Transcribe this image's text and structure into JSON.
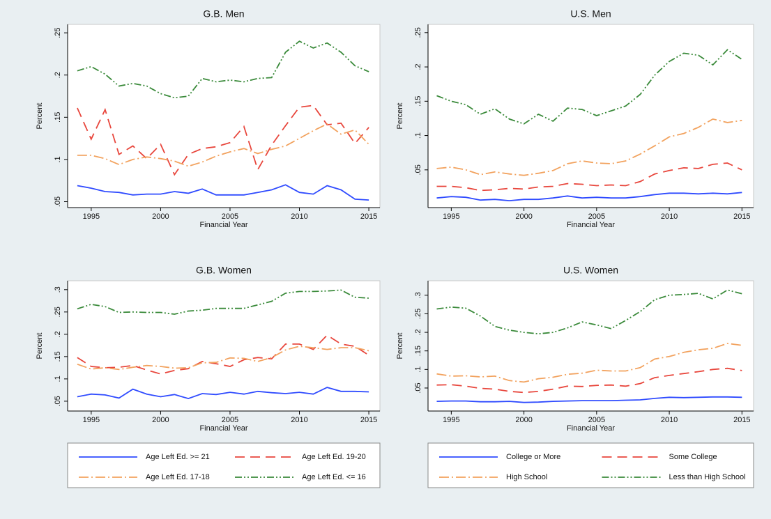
{
  "chart_data": [
    {
      "type": "line",
      "title": "G.B. Men",
      "x_label": "Financial Year",
      "y_label": "Percent",
      "x": [
        1994,
        1995,
        1996,
        1997,
        1998,
        1999,
        2000,
        2001,
        2002,
        2003,
        2004,
        2005,
        2006,
        2007,
        2008,
        2009,
        2010,
        2011,
        2012,
        2013,
        2014,
        2015
      ],
      "xlim": [
        1993.3,
        2015.8
      ],
      "xticks": [
        1995,
        2000,
        2005,
        2010,
        2015
      ],
      "ylim": [
        0.043,
        0.26
      ],
      "yticks": [
        {
          "value": 0.05,
          "label": ".05"
        },
        {
          "value": 0.1,
          "label": ".1"
        },
        {
          "value": 0.15,
          "label": ".15"
        },
        {
          "value": 0.2,
          "label": ".2"
        },
        {
          "value": 0.25,
          "label": ".25"
        }
      ],
      "series": [
        {
          "color": "#2f4bff",
          "dash": "none",
          "values": [
            0.069,
            0.066,
            0.062,
            0.061,
            0.058,
            0.059,
            0.059,
            0.062,
            0.06,
            0.065,
            0.058,
            0.058,
            0.058,
            0.061,
            0.064,
            0.07,
            0.061,
            0.059,
            0.069,
            0.064,
            0.053,
            0.052
          ]
        },
        {
          "color": "#e8463c",
          "dash": "14 8",
          "values": [
            0.161,
            0.124,
            0.159,
            0.106,
            0.116,
            0.101,
            0.118,
            0.082,
            0.106,
            0.113,
            0.115,
            0.12,
            0.139,
            0.088,
            0.117,
            0.14,
            0.162,
            0.164,
            0.141,
            0.143,
            0.119,
            0.138
          ]
        },
        {
          "color": "#f2a25e",
          "dash": "14 4 2 4",
          "values": [
            0.105,
            0.105,
            0.101,
            0.094,
            0.1,
            0.103,
            0.101,
            0.098,
            0.092,
            0.097,
            0.104,
            0.109,
            0.113,
            0.107,
            0.112,
            0.116,
            0.125,
            0.134,
            0.142,
            0.13,
            0.135,
            0.118
          ]
        },
        {
          "color": "#3a8a3a",
          "dash": "10 3 2 3 2 3",
          "values": [
            0.205,
            0.21,
            0.201,
            0.187,
            0.19,
            0.187,
            0.178,
            0.173,
            0.175,
            0.196,
            0.192,
            0.194,
            0.192,
            0.196,
            0.197,
            0.227,
            0.24,
            0.232,
            0.238,
            0.227,
            0.211,
            0.204
          ]
        }
      ]
    },
    {
      "type": "line",
      "title": "U.S. Men",
      "x_label": "Financial Year",
      "y_label": "Percent",
      "x": [
        1994,
        1995,
        1996,
        1997,
        1998,
        1999,
        2000,
        2001,
        2002,
        2003,
        2004,
        2005,
        2006,
        2007,
        2008,
        2009,
        2010,
        2011,
        2012,
        2013,
        2014,
        2015
      ],
      "xlim": [
        1993.4,
        2015.8
      ],
      "xticks": [
        1995,
        2000,
        2005,
        2010,
        2015
      ],
      "ylim": [
        -0.005,
        0.262
      ],
      "yticks": [
        {
          "value": 0.05,
          "label": ".05"
        },
        {
          "value": 0.1,
          "label": ".1"
        },
        {
          "value": 0.15,
          "label": ".15"
        },
        {
          "value": 0.2,
          "label": ".2"
        },
        {
          "value": 0.25,
          "label": ".25"
        }
      ],
      "series": [
        {
          "color": "#2f4bff",
          "dash": "none",
          "values": [
            0.009,
            0.011,
            0.01,
            0.006,
            0.007,
            0.005,
            0.007,
            0.007,
            0.009,
            0.012,
            0.009,
            0.01,
            0.009,
            0.009,
            0.011,
            0.014,
            0.016,
            0.016,
            0.015,
            0.016,
            0.015,
            0.017
          ]
        },
        {
          "color": "#e8463c",
          "dash": "14 8",
          "values": [
            0.026,
            0.026,
            0.024,
            0.02,
            0.021,
            0.023,
            0.022,
            0.025,
            0.026,
            0.03,
            0.029,
            0.027,
            0.028,
            0.027,
            0.033,
            0.044,
            0.049,
            0.053,
            0.052,
            0.058,
            0.06,
            0.05
          ]
        },
        {
          "color": "#f2a25e",
          "dash": "14 4 2 4",
          "values": [
            0.052,
            0.054,
            0.05,
            0.043,
            0.047,
            0.044,
            0.042,
            0.045,
            0.049,
            0.059,
            0.063,
            0.06,
            0.059,
            0.063,
            0.073,
            0.085,
            0.098,
            0.103,
            0.112,
            0.124,
            0.119,
            0.122
          ]
        },
        {
          "color": "#3a8a3a",
          "dash": "10 3 2 3 2 3",
          "values": [
            0.158,
            0.15,
            0.145,
            0.131,
            0.139,
            0.124,
            0.117,
            0.131,
            0.121,
            0.14,
            0.138,
            0.129,
            0.136,
            0.143,
            0.16,
            0.188,
            0.208,
            0.22,
            0.217,
            0.203,
            0.225,
            0.211
          ]
        }
      ]
    },
    {
      "type": "line",
      "title": "G.B. Women",
      "x_label": "Financial Year",
      "y_label": "Percent",
      "x": [
        1994,
        1995,
        1996,
        1997,
        1998,
        1999,
        2000,
        2001,
        2002,
        2003,
        2004,
        2005,
        2006,
        2007,
        2008,
        2009,
        2010,
        2011,
        2012,
        2013,
        2014,
        2015
      ],
      "xlim": [
        1993.3,
        2015.8
      ],
      "xticks": [
        1995,
        2000,
        2005,
        2010,
        2015
      ],
      "ylim": [
        0.028,
        0.32
      ],
      "yticks": [
        {
          "value": 0.05,
          "label": ".05"
        },
        {
          "value": 0.1,
          "label": ".1"
        },
        {
          "value": 0.15,
          "label": ".15"
        },
        {
          "value": 0.2,
          "label": ".2"
        },
        {
          "value": 0.25,
          "label": ".25"
        },
        {
          "value": 0.3,
          "label": ".3"
        }
      ],
      "series": [
        {
          "name": "Age Left Ed. >= 21",
          "color": "#2f4bff",
          "dash": "none",
          "values": [
            0.06,
            0.066,
            0.064,
            0.057,
            0.077,
            0.066,
            0.06,
            0.065,
            0.056,
            0.067,
            0.065,
            0.07,
            0.066,
            0.072,
            0.069,
            0.067,
            0.07,
            0.066,
            0.081,
            0.072,
            0.072,
            0.071
          ]
        },
        {
          "name": "Age Left Ed. 19-20",
          "color": "#e8463c",
          "dash": "14 8",
          "values": [
            0.148,
            0.128,
            0.125,
            0.126,
            0.13,
            0.12,
            0.111,
            0.119,
            0.123,
            0.139,
            0.134,
            0.128,
            0.143,
            0.148,
            0.145,
            0.178,
            0.178,
            0.166,
            0.198,
            0.178,
            0.173,
            0.153
          ]
        },
        {
          "name": "Age Left Ed. 17-18",
          "color": "#f2a25e",
          "dash": "14 4 2 4",
          "values": [
            0.133,
            0.122,
            0.125,
            0.121,
            0.126,
            0.13,
            0.128,
            0.124,
            0.125,
            0.136,
            0.137,
            0.147,
            0.146,
            0.139,
            0.148,
            0.165,
            0.173,
            0.17,
            0.166,
            0.17,
            0.17,
            0.163
          ]
        },
        {
          "name": "Age Left Ed. <= 16",
          "color": "#3a8a3a",
          "dash": "10 3 2 3 2 3",
          "values": [
            0.257,
            0.267,
            0.262,
            0.249,
            0.25,
            0.249,
            0.249,
            0.245,
            0.252,
            0.254,
            0.258,
            0.258,
            0.258,
            0.266,
            0.274,
            0.292,
            0.296,
            0.296,
            0.297,
            0.299,
            0.283,
            0.281
          ]
        }
      ]
    },
    {
      "type": "line",
      "title": "U.S. Women",
      "x_label": "Financial Year",
      "y_label": "Percent",
      "x": [
        1994,
        1995,
        1996,
        1997,
        1998,
        1999,
        2000,
        2001,
        2002,
        2003,
        2004,
        2005,
        2006,
        2007,
        2008,
        2009,
        2010,
        2011,
        2012,
        2013,
        2014,
        2015
      ],
      "xlim": [
        1993.4,
        2015.8
      ],
      "xticks": [
        1995,
        2000,
        2005,
        2010,
        2015
      ],
      "ylim": [
        -0.012,
        0.339
      ],
      "yticks": [
        {
          "value": 0.05,
          "label": ".05"
        },
        {
          "value": 0.1,
          "label": ".1"
        },
        {
          "value": 0.15,
          "label": ".15"
        },
        {
          "value": 0.2,
          "label": ".2"
        },
        {
          "value": 0.25,
          "label": ".25"
        },
        {
          "value": 0.3,
          "label": ".3"
        }
      ],
      "series": [
        {
          "name": "College or More",
          "color": "#2f4bff",
          "dash": "none",
          "values": [
            0.014,
            0.015,
            0.015,
            0.013,
            0.013,
            0.014,
            0.011,
            0.012,
            0.014,
            0.015,
            0.016,
            0.016,
            0.016,
            0.017,
            0.018,
            0.022,
            0.025,
            0.024,
            0.025,
            0.026,
            0.026,
            0.025
          ]
        },
        {
          "name": "Some College",
          "color": "#e8463c",
          "dash": "14 8",
          "values": [
            0.058,
            0.059,
            0.055,
            0.049,
            0.047,
            0.041,
            0.038,
            0.041,
            0.047,
            0.055,
            0.054,
            0.057,
            0.058,
            0.055,
            0.062,
            0.078,
            0.084,
            0.089,
            0.094,
            0.1,
            0.103,
            0.097
          ]
        },
        {
          "name": "High School",
          "color": "#f2a25e",
          "dash": "14 4 2 4",
          "values": [
            0.088,
            0.082,
            0.083,
            0.08,
            0.082,
            0.07,
            0.066,
            0.075,
            0.079,
            0.087,
            0.09,
            0.098,
            0.096,
            0.096,
            0.105,
            0.128,
            0.135,
            0.146,
            0.153,
            0.157,
            0.17,
            0.165
          ]
        },
        {
          "name": "Less than High School",
          "color": "#3a8a3a",
          "dash": "10 3 2 3 2 3",
          "values": [
            0.263,
            0.268,
            0.265,
            0.244,
            0.216,
            0.206,
            0.2,
            0.196,
            0.2,
            0.212,
            0.228,
            0.22,
            0.21,
            0.232,
            0.256,
            0.288,
            0.3,
            0.302,
            0.305,
            0.29,
            0.314,
            0.304
          ]
        }
      ]
    }
  ]
}
